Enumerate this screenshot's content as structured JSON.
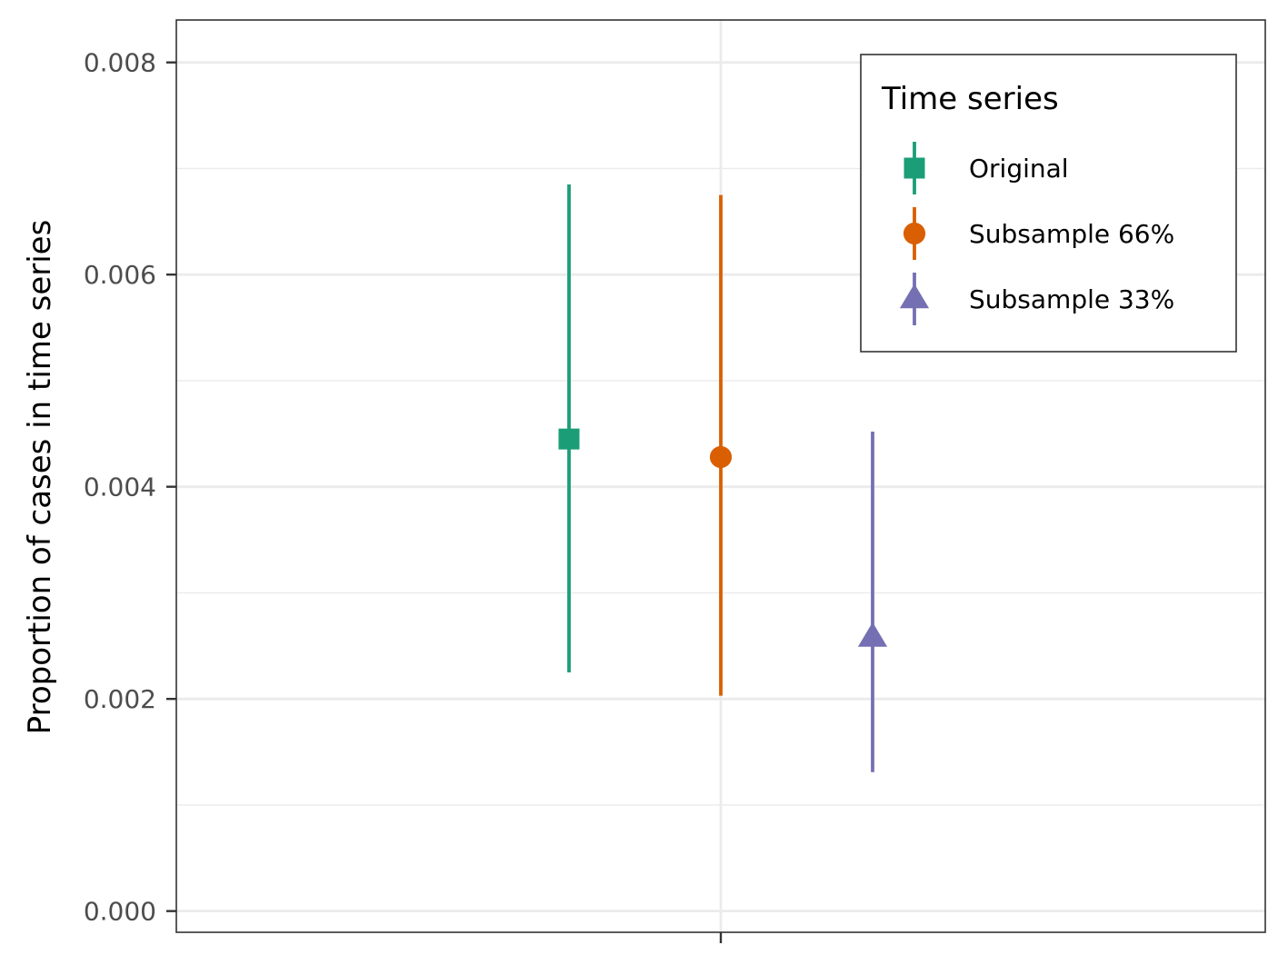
{
  "chart_data": {
    "type": "scatter",
    "ylabel": "Proportion of cases in time series",
    "ylim": [
      -0.0002,
      0.0084
    ],
    "y_ticks": [
      "0.000",
      "0.002",
      "0.004",
      "0.006",
      "0.008"
    ],
    "y_tick_values": [
      0.0,
      0.002,
      0.004,
      0.006,
      0.008
    ],
    "y_minor_values": [
      0.001,
      0.003,
      0.005,
      0.007
    ],
    "grid": true,
    "legend": {
      "title": "Time series",
      "placement": "top-right"
    },
    "series": [
      {
        "name": "Original",
        "shape": "square",
        "color": "#1b9e77",
        "y": 0.00445,
        "lower": 0.00225,
        "upper": 0.00685
      },
      {
        "name": "Subsample 66%",
        "shape": "circle",
        "color": "#d95f02",
        "y": 0.00428,
        "lower": 0.00203,
        "upper": 0.00675
      },
      {
        "name": "Subsample 33%",
        "shape": "triangle",
        "color": "#7570b3",
        "y": 0.00258,
        "lower": 0.00131,
        "upper": 0.00452
      }
    ]
  }
}
